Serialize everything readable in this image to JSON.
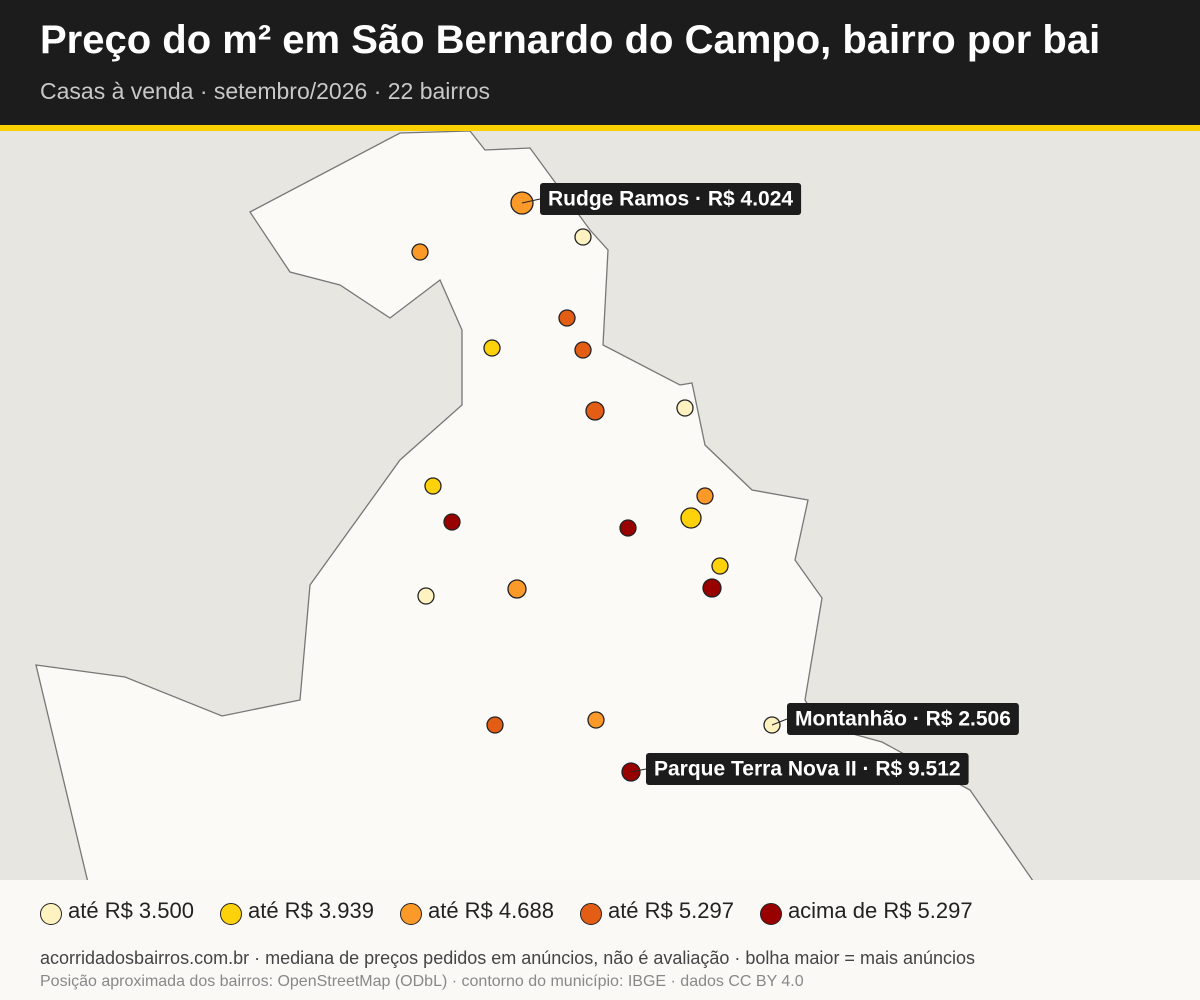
{
  "header": {
    "title": "Preço do m² em São Bernardo do Campo, bairro por bai",
    "subtitle": "Casas à venda · setembro/2026 · 22 bairros"
  },
  "annotations": [
    {
      "label": "Rudge Ramos · R$ 4.024"
    },
    {
      "label": "Montanhão · R$ 2.506"
    },
    {
      "label": "Parque Terra Nova II · R$ 9.512"
    }
  ],
  "legend": [
    {
      "label": "até R$ 3.500",
      "color": "#fef3c0"
    },
    {
      "label": "até R$ 3.939",
      "color": "#fdd20a"
    },
    {
      "label": "até R$ 4.688",
      "color": "#fb9a28"
    },
    {
      "label": "até R$ 5.297",
      "color": "#e45d14"
    },
    {
      "label": "acima de R$ 5.297",
      "color": "#990000"
    }
  ],
  "footer": {
    "line1": "acorridadosbairros.com.br · mediana de preços pedidos em anúncios, não é avaliação · bolha maior = mais anúncios",
    "line2": "Posição aproximada dos bairros: OpenStreetMap (ODbL) · contorno do município: IBGE · dados CC BY 4.0"
  }
}
